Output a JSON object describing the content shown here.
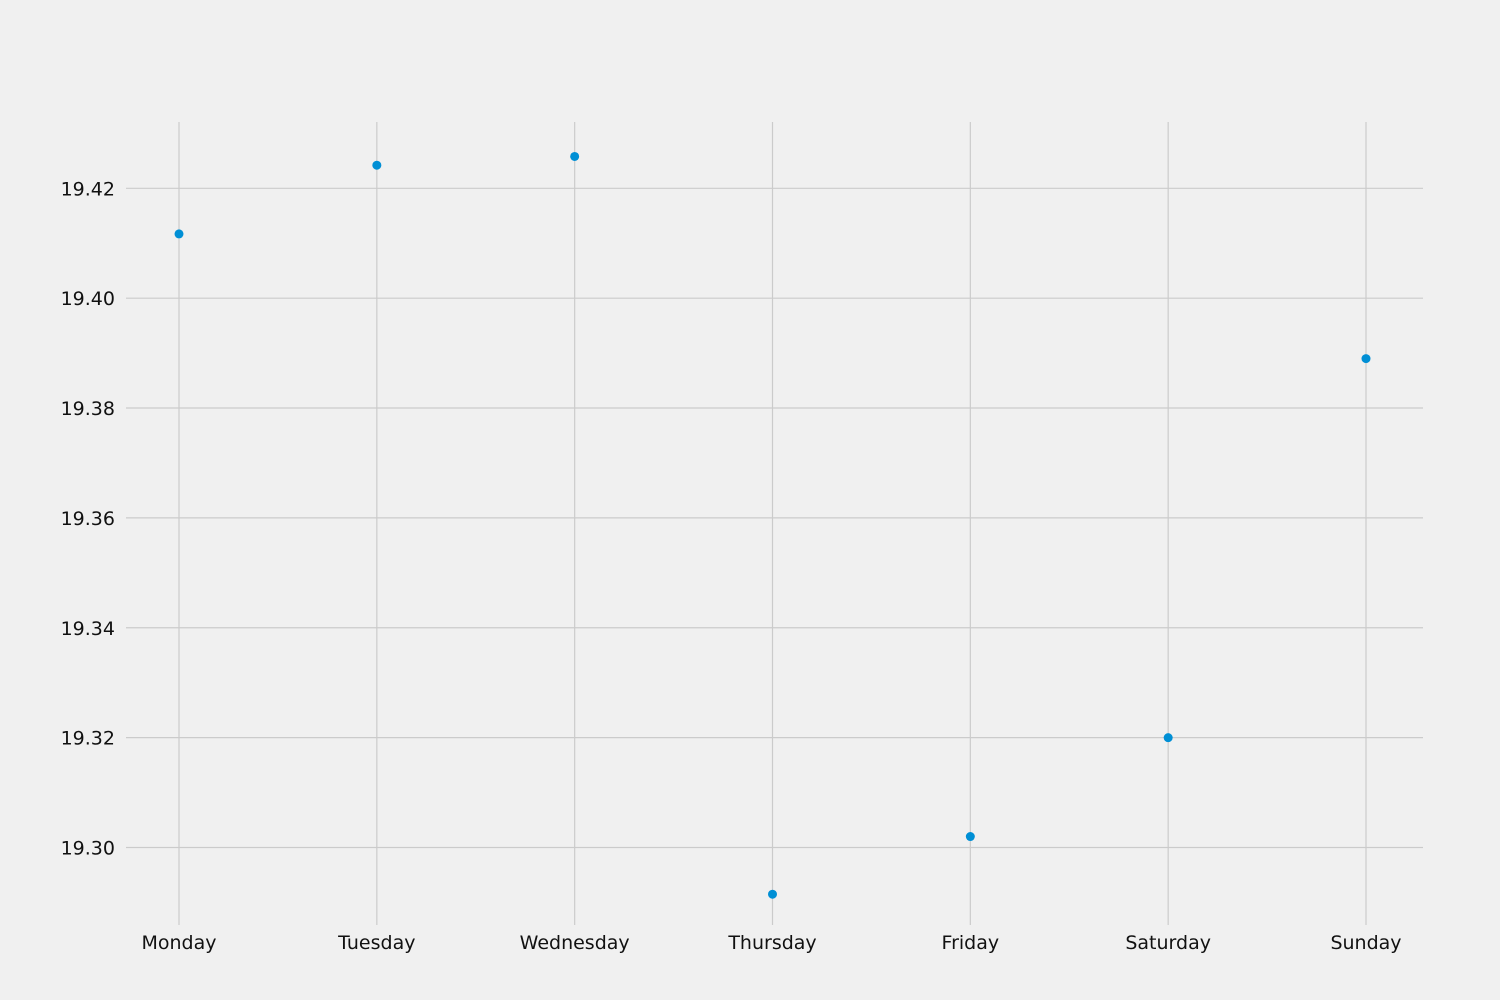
{
  "chart_data": {
    "type": "scatter",
    "title": "",
    "xlabel": "",
    "ylabel": "",
    "categories": [
      "Monday",
      "Tuesday",
      "Wednesday",
      "Thursday",
      "Friday",
      "Saturday",
      "Sunday"
    ],
    "series": [
      {
        "values": [
          19.4117,
          19.4242,
          19.4258,
          19.2915,
          19.302,
          19.32,
          19.389
        ]
      }
    ],
    "y_ticks": [
      "19.30",
      "19.32",
      "19.34",
      "19.36",
      "19.38",
      "19.40",
      "19.42"
    ],
    "ylim": [
      19.2865,
      19.432
    ],
    "grid": true,
    "legend": "none",
    "colors": {
      "background": "#f0f0f0",
      "grid": "#cbcbcb",
      "marker": "#008fd5",
      "text": "#111111"
    }
  }
}
